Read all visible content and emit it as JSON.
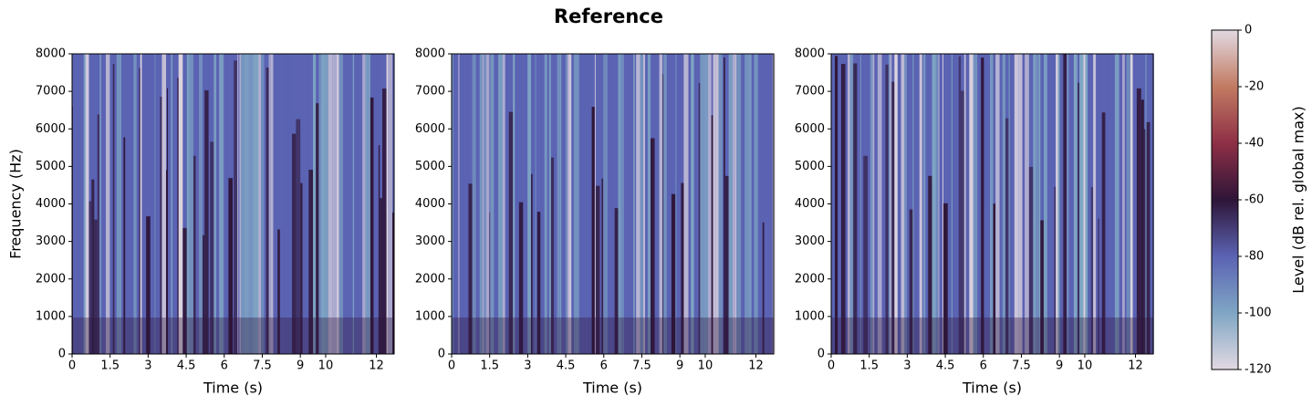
{
  "title": "Reference",
  "chart_data": [
    {
      "type": "spectrogram",
      "xlabel": "Time (s)",
      "ylabel": "Frequency (Hz)",
      "xlim": [
        0,
        12.7
      ],
      "ylim": [
        0,
        8000
      ],
      "xticks": [
        0,
        1.5,
        3,
        4.5,
        6,
        7.5,
        9,
        10,
        12
      ],
      "yticks": [
        0,
        1000,
        2000,
        3000,
        4000,
        5000,
        6000,
        7000,
        8000
      ]
    },
    {
      "type": "spectrogram",
      "xlabel": "Time (s)",
      "xlim": [
        0,
        12.7
      ],
      "ylim": [
        0,
        8000
      ],
      "xticks": [
        0,
        1.5,
        3,
        4.5,
        6,
        7.5,
        9,
        10,
        12
      ],
      "yticks": [
        0,
        1000,
        2000,
        3000,
        4000,
        5000,
        6000,
        7000,
        8000
      ]
    },
    {
      "type": "spectrogram",
      "xlabel": "Time (s)",
      "xlim": [
        0,
        12.7
      ],
      "ylim": [
        0,
        8000
      ],
      "xticks": [
        0,
        1.5,
        3,
        4.5,
        6,
        7.5,
        9,
        10,
        12
      ],
      "yticks": [
        0,
        1000,
        2000,
        3000,
        4000,
        5000,
        6000,
        7000,
        8000
      ]
    }
  ],
  "colorbar": {
    "label": "Level (dB rel. global max)",
    "lim": [
      -120,
      0
    ],
    "ticks": [
      0,
      -20,
      -40,
      -60,
      -80,
      -100,
      -120
    ],
    "colors": [
      "#e2d9e2",
      "#7fa6c4",
      "#5b63b3",
      "#2e1538",
      "#8e2f46",
      "#c27b62",
      "#e2d9e2"
    ]
  }
}
